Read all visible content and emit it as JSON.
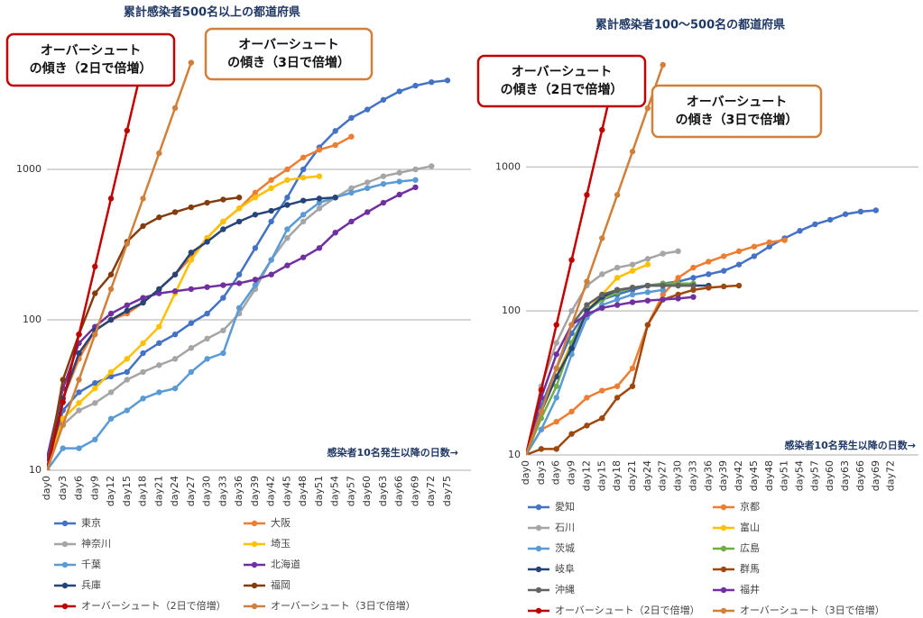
{
  "chart_data": [
    {
      "type": "line",
      "title": "累計感染者500名以上の都道府県",
      "x_label": "感染者10名発生以降の日数→",
      "log_y": true,
      "grid": true,
      "annotations": [
        {
          "lines": [
            "オーバーシュート",
            "の傾き（2日で倍増）"
          ],
          "color": "#c00000"
        },
        {
          "lines": [
            "オーバーシュート",
            "の傾き（3日で倍増）"
          ],
          "color": "#d0803a"
        }
      ],
      "categories": [
        "day0",
        "day3",
        "day6",
        "day9",
        "day12",
        "day15",
        "day18",
        "day21",
        "day24",
        "day27",
        "day30",
        "day33",
        "day36",
        "day39",
        "day42",
        "day45",
        "day48",
        "day51",
        "day54",
        "day57",
        "day60",
        "day63",
        "day66",
        "day69",
        "day72",
        "day75"
      ],
      "ylim": [
        10,
        10000
      ],
      "yticks": [
        10,
        100,
        1000
      ],
      "series": [
        {
          "name": "東京",
          "color": "#4472c4",
          "values": [
            10,
            25,
            33,
            38,
            42,
            45,
            60,
            70,
            80,
            95,
            110,
            140,
            200,
            300,
            450,
            650,
            1000,
            1400,
            1800,
            2200,
            2500,
            2900,
            3300,
            3600,
            3800,
            3900
          ]
        },
        {
          "name": "大阪",
          "color": "#ed7d31",
          "values": [
            10,
            30,
            55,
            85,
            100,
            110,
            130,
            160,
            200,
            260,
            350,
            450,
            550,
            700,
            850,
            1000,
            1200,
            1350,
            1450,
            1650,
            null,
            null,
            null,
            null,
            null,
            null
          ]
        },
        {
          "name": "神奈川",
          "color": "#a5a5a5",
          "values": [
            10,
            20,
            25,
            28,
            33,
            40,
            45,
            50,
            55,
            65,
            75,
            85,
            110,
            160,
            250,
            350,
            450,
            550,
            650,
            750,
            820,
            900,
            950,
            1000,
            1050,
            null
          ]
        },
        {
          "name": "埼玉",
          "color": "#ffc000",
          "values": [
            10,
            22,
            28,
            35,
            45,
            55,
            70,
            90,
            150,
            250,
            350,
            450,
            550,
            650,
            750,
            850,
            880,
            900,
            null,
            null,
            null,
            null,
            null,
            null,
            null,
            null
          ]
        },
        {
          "name": "千葉",
          "color": "#5b9bd5",
          "values": [
            10,
            14,
            14,
            16,
            22,
            25,
            30,
            33,
            35,
            45,
            55,
            60,
            120,
            170,
            250,
            400,
            500,
            600,
            650,
            700,
            750,
            800,
            830,
            850,
            null,
            null
          ]
        },
        {
          "name": "北海道",
          "color": "#7030a0",
          "values": [
            12,
            35,
            70,
            90,
            110,
            125,
            140,
            150,
            155,
            160,
            165,
            170,
            175,
            185,
            200,
            230,
            260,
            300,
            380,
            450,
            520,
            600,
            680,
            760,
            null,
            null
          ]
        },
        {
          "name": "兵庫",
          "color": "#264478",
          "values": [
            10,
            30,
            60,
            85,
            100,
            115,
            130,
            160,
            200,
            280,
            330,
            400,
            450,
            500,
            530,
            580,
            620,
            640,
            650,
            null,
            null,
            null,
            null,
            null,
            null,
            null
          ]
        },
        {
          "name": "福岡",
          "color": "#843c0c",
          "values": [
            10,
            40,
            80,
            150,
            200,
            330,
            420,
            480,
            520,
            560,
            600,
            630,
            650,
            null,
            null,
            null,
            null,
            null,
            null,
            null,
            null,
            null,
            null,
            null,
            null,
            null
          ]
        },
        {
          "name": "オーバーシュート（2日で倍増）",
          "color": "#c00000",
          "values": [
            10,
            28.3,
            80,
            226,
            640,
            1810,
            5120,
            null,
            null,
            null,
            null,
            null,
            null,
            null,
            null,
            null,
            null,
            null,
            null,
            null,
            null,
            null,
            null,
            null,
            null,
            null
          ]
        },
        {
          "name": "オーバーシュート（3日で倍増）",
          "color": "#d0803a",
          "values": [
            10,
            20,
            40,
            80,
            160,
            320,
            640,
            1280,
            2560,
            5120,
            null,
            null,
            null,
            null,
            null,
            null,
            null,
            null,
            null,
            null,
            null,
            null,
            null,
            null,
            null,
            null
          ]
        }
      ]
    },
    {
      "type": "line",
      "title": "累計感染者100～500名の都道府県",
      "x_label": "感染者10名発生以降の日数→",
      "log_y": true,
      "grid": true,
      "annotations": [
        {
          "lines": [
            "オーバーシュート",
            "の傾き（2日で倍増）"
          ],
          "color": "#c00000"
        },
        {
          "lines": [
            "オーバーシュート",
            "の傾き（3日で倍増）"
          ],
          "color": "#d0803a"
        }
      ],
      "categories": [
        "day0",
        "day3",
        "day6",
        "day9",
        "day12",
        "day15",
        "day18",
        "day21",
        "day24",
        "day27",
        "day30",
        "day33",
        "day36",
        "day39",
        "day42",
        "day45",
        "day48",
        "day51",
        "day54",
        "day57",
        "day60",
        "day63",
        "day66",
        "day69",
        "day72"
      ],
      "ylim": [
        10,
        8000
      ],
      "yticks": [
        10,
        100,
        1000
      ],
      "series": [
        {
          "name": "愛知",
          "color": "#4472c4",
          "values": [
            10,
            22,
            40,
            70,
            100,
            120,
            130,
            140,
            150,
            155,
            160,
            170,
            180,
            190,
            210,
            240,
            280,
            320,
            360,
            400,
            430,
            470,
            490,
            500,
            null
          ]
        },
        {
          "name": "京都",
          "color": "#ed7d31",
          "values": [
            10,
            15,
            17,
            20,
            25,
            28,
            30,
            40,
            80,
            130,
            170,
            200,
            220,
            240,
            260,
            280,
            300,
            310,
            null,
            null,
            null,
            null,
            null,
            null,
            null
          ]
        },
        {
          "name": "石川",
          "color": "#a5a5a5",
          "values": [
            10,
            30,
            60,
            100,
            150,
            180,
            200,
            210,
            230,
            250,
            260,
            null,
            null,
            null,
            null,
            null,
            null,
            null,
            null,
            null,
            null,
            null,
            null,
            null,
            null
          ]
        },
        {
          "name": "富山",
          "color": "#ffc000",
          "values": [
            10,
            20,
            35,
            60,
            100,
            130,
            170,
            190,
            210,
            null,
            null,
            null,
            null,
            null,
            null,
            null,
            null,
            null,
            null,
            null,
            null,
            null,
            null,
            null,
            null
          ]
        },
        {
          "name": "茨城",
          "color": "#5b9bd5",
          "values": [
            10,
            15,
            25,
            50,
            90,
            110,
            120,
            130,
            135,
            140,
            null,
            null,
            null,
            null,
            null,
            null,
            null,
            null,
            null,
            null,
            null,
            null,
            null,
            null,
            null
          ]
        },
        {
          "name": "広島",
          "color": "#70ad47",
          "values": [
            10,
            18,
            30,
            60,
            100,
            120,
            135,
            145,
            150,
            155,
            155,
            155,
            null,
            null,
            null,
            null,
            null,
            null,
            null,
            null,
            null,
            null,
            null,
            null,
            null
          ]
        },
        {
          "name": "岐阜",
          "color": "#264478",
          "values": [
            10,
            20,
            35,
            55,
            100,
            125,
            140,
            145,
            150,
            150,
            150,
            150,
            150,
            null,
            null,
            null,
            null,
            null,
            null,
            null,
            null,
            null,
            null,
            null,
            null
          ]
        },
        {
          "name": "群馬",
          "color": "#9e480e",
          "values": [
            10,
            11,
            11,
            14,
            16,
            18,
            25,
            30,
            80,
            120,
            130,
            140,
            145,
            148,
            150,
            null,
            null,
            null,
            null,
            null,
            null,
            null,
            null,
            null,
            null
          ]
        },
        {
          "name": "沖縄",
          "color": "#636363",
          "values": [
            10,
            20,
            40,
            80,
            110,
            130,
            140,
            145,
            150,
            150,
            150,
            150,
            null,
            null,
            null,
            null,
            null,
            null,
            null,
            null,
            null,
            null,
            null,
            null,
            null
          ]
        },
        {
          "name": "福井",
          "color": "#7030a0",
          "values": [
            10,
            25,
            50,
            80,
            95,
            105,
            110,
            115,
            118,
            120,
            122,
            125,
            null,
            null,
            null,
            null,
            null,
            null,
            null,
            null,
            null,
            null,
            null,
            null,
            null
          ]
        },
        {
          "name": "オーバーシュート（2日で倍増）",
          "color": "#c00000",
          "values": [
            10,
            28.3,
            80,
            226,
            640,
            1810,
            5120,
            null,
            null,
            null,
            null,
            null,
            null,
            null,
            null,
            null,
            null,
            null,
            null,
            null,
            null,
            null,
            null,
            null,
            null
          ]
        },
        {
          "name": "オーバーシュート（3日で倍増）",
          "color": "#d0803a",
          "values": [
            10,
            20,
            40,
            80,
            160,
            320,
            640,
            1280,
            2560,
            5120,
            null,
            null,
            null,
            null,
            null,
            null,
            null,
            null,
            null,
            null,
            null,
            null,
            null,
            null,
            null
          ]
        }
      ]
    }
  ]
}
